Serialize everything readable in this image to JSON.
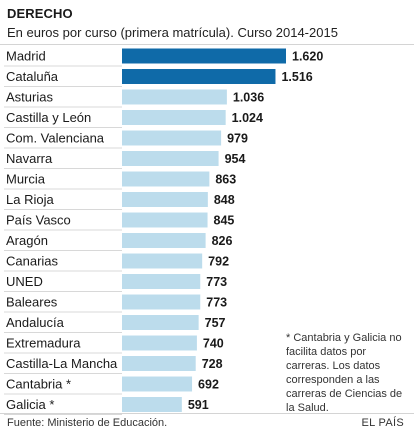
{
  "header": {
    "title": "DERECHO",
    "subtitle": "En euros por curso (primera matrícula). Curso 2014-2015"
  },
  "colors": {
    "highlight": "#0f6aa8",
    "bar": "#bcdcec",
    "row_line": "#d8d8d8",
    "text": "#1a1a1a"
  },
  "chart_data": {
    "type": "bar",
    "orientation": "horizontal",
    "title": "DERECHO",
    "subtitle": "En euros por curso (primera matrícula). Curso 2014-2015",
    "xlabel": "",
    "ylabel": "",
    "xlim": [
      0,
      1620
    ],
    "grid": false,
    "legend": "none",
    "categories": [
      "Madrid",
      "Cataluña",
      "Asturias",
      "Castilla y León",
      "Com. Valenciana",
      "Navarra",
      "Murcia",
      "La Rioja",
      "País Vasco",
      "Aragón",
      "Canarias",
      "UNED",
      "Baleares",
      "Andalucía",
      "Extremadura",
      "Castilla-La Mancha",
      "Cantabria *",
      "Galicia *"
    ],
    "values": [
      1620,
      1516,
      1036,
      1024,
      979,
      954,
      863,
      848,
      845,
      826,
      792,
      773,
      773,
      757,
      740,
      728,
      692,
      591
    ],
    "value_labels": [
      "1.620",
      "1.516",
      "1.036",
      "1.024",
      "979",
      "954",
      "863",
      "848",
      "845",
      "826",
      "792",
      "773",
      "773",
      "757",
      "740",
      "728",
      "692",
      "591"
    ],
    "highlighted": [
      "Madrid",
      "Cataluña"
    ]
  },
  "footnote": "* Cantabria y Galicia no facilita datos por carreras. Los datos corresponden a las carreras de Ciencias de la Salud.",
  "source": "Fuente: Ministerio de Educación.",
  "brand": "EL PAÍS"
}
